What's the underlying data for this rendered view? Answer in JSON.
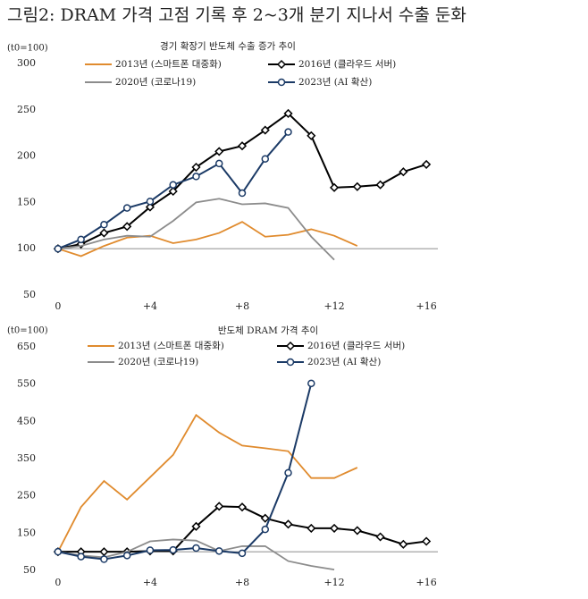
{
  "title": "그림2: DRAM 가격 고점 기록 후 2~3개 분기 지나서 수출 둔화",
  "chart_data": [
    {
      "type": "line",
      "title": "경기 확장기 반도체 수출 증가 추이",
      "y_unit": "(t0=100)",
      "x": [
        0,
        1,
        2,
        3,
        4,
        5,
        6,
        7,
        8,
        9,
        10,
        11,
        12,
        13,
        14,
        15,
        16
      ],
      "xlim": [
        -0.5,
        16.5
      ],
      "ylim": [
        50,
        300
      ],
      "xticks": [
        0,
        {
          "value": 4,
          "label": "+4"
        },
        {
          "value": 8,
          "label": "+8"
        },
        {
          "value": 12,
          "label": "+12"
        },
        {
          "value": 16,
          "label": "+16"
        }
      ],
      "yticks": [
        50,
        100,
        150,
        200,
        250,
        300
      ],
      "baseline": 100,
      "series": [
        {
          "name": "2013년 (스마트폰 대중화)",
          "color": "#e08b2e",
          "marker": null,
          "values": [
            100,
            92,
            103,
            112,
            114,
            106,
            110,
            117,
            129,
            113,
            115,
            121,
            114,
            103,
            null,
            null,
            null
          ]
        },
        {
          "name": "2016년 (클라우드 서버)",
          "color": "#000000",
          "marker": "diamond",
          "values": [
            100,
            105,
            117,
            124,
            145,
            162,
            188,
            205,
            211,
            228,
            246,
            222,
            166,
            167,
            169,
            183,
            191
          ]
        },
        {
          "name": "2020년 (코로나19)",
          "color": "#8c8c8c",
          "marker": null,
          "values": [
            100,
            103,
            110,
            114,
            113,
            130,
            150,
            154,
            148,
            149,
            144,
            113,
            88,
            null,
            null,
            null,
            null
          ]
        },
        {
          "name": "2023년 (AI 확산)",
          "color": "#1b3a66",
          "marker": "circle",
          "values": [
            100,
            110,
            126,
            144,
            151,
            169,
            178,
            192,
            160,
            197,
            226,
            null,
            null,
            null,
            null,
            null,
            null
          ]
        }
      ]
    },
    {
      "type": "line",
      "title": "반도체 DRAM 가격 추이",
      "y_unit": "(t0=100)",
      "x": [
        0,
        1,
        2,
        3,
        4,
        5,
        6,
        7,
        8,
        9,
        10,
        11,
        12,
        13,
        14,
        15,
        16
      ],
      "xlim": [
        -0.5,
        16.5
      ],
      "ylim": [
        50,
        650
      ],
      "xticks": [
        0,
        {
          "value": 4,
          "label": "+4"
        },
        {
          "value": 8,
          "label": "+8"
        },
        {
          "value": 12,
          "label": "+12"
        },
        {
          "value": 16,
          "label": "+16"
        }
      ],
      "yticks": [
        50,
        150,
        250,
        350,
        450,
        550,
        650
      ],
      "baseline": 100,
      "series": [
        {
          "name": "2013년 (스마트폰 대중화)",
          "color": "#e08b2e",
          "marker": null,
          "values": [
            100,
            220,
            290,
            240,
            300,
            360,
            467,
            420,
            385,
            378,
            370,
            298,
            298,
            326,
            null,
            null,
            null
          ]
        },
        {
          "name": "2016년 (클라우드 서버)",
          "color": "#000000",
          "marker": "diamond",
          "values": [
            100,
            100,
            100,
            100,
            102,
            102,
            168,
            222,
            220,
            190,
            174,
            163,
            163,
            157,
            140,
            120,
            128
          ]
        },
        {
          "name": "2020년 (코로나19)",
          "color": "#8c8c8c",
          "marker": null,
          "values": [
            100,
            90,
            85,
            100,
            128,
            133,
            130,
            102,
            115,
            115,
            75,
            62,
            52,
            null,
            null,
            null,
            null
          ]
        },
        {
          "name": "2023년 (AI 확산)",
          "color": "#1b3a66",
          "marker": "circle",
          "values": [
            100,
            87,
            80,
            90,
            104,
            105,
            110,
            102,
            96,
            160,
            312,
            552,
            null,
            null,
            null,
            null,
            null
          ]
        }
      ]
    }
  ]
}
